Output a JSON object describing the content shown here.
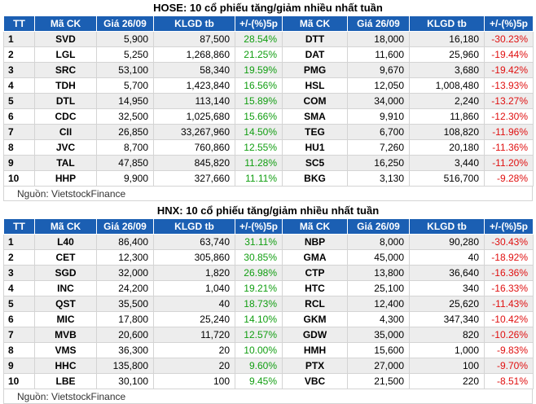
{
  "hose": {
    "title": "HOSE: 10 cổ phiếu tăng/giảm nhiều nhất tuần",
    "headers": [
      "TT",
      "Mã CK",
      "Giá 26/09",
      "KLGD tb",
      "+/-(%)5p",
      "Mã CK",
      "Giá 26/09",
      "KLGD tb",
      "+/-(%)5p"
    ],
    "rows": [
      {
        "tt": "1",
        "up_code": "SVD",
        "up_price": "5,900",
        "up_vol": "87,500",
        "up_pct": "28.54%",
        "dn_code": "DTT",
        "dn_price": "18,000",
        "dn_vol": "16,180",
        "dn_pct": "-30.23%"
      },
      {
        "tt": "2",
        "up_code": "LGL",
        "up_price": "5,250",
        "up_vol": "1,268,860",
        "up_pct": "21.25%",
        "dn_code": "DAT",
        "dn_price": "11,600",
        "dn_vol": "25,960",
        "dn_pct": "-19.44%"
      },
      {
        "tt": "3",
        "up_code": "SRC",
        "up_price": "53,100",
        "up_vol": "58,340",
        "up_pct": "19.59%",
        "dn_code": "PMG",
        "dn_price": "9,670",
        "dn_vol": "3,680",
        "dn_pct": "-19.42%"
      },
      {
        "tt": "4",
        "up_code": "TDH",
        "up_price": "5,700",
        "up_vol": "1,423,840",
        "up_pct": "16.56%",
        "dn_code": "HSL",
        "dn_price": "12,050",
        "dn_vol": "1,008,480",
        "dn_pct": "-13.93%"
      },
      {
        "tt": "5",
        "up_code": "DTL",
        "up_price": "14,950",
        "up_vol": "113,140",
        "up_pct": "15.89%",
        "dn_code": "COM",
        "dn_price": "34,000",
        "dn_vol": "2,240",
        "dn_pct": "-13.27%"
      },
      {
        "tt": "6",
        "up_code": "CDC",
        "up_price": "32,500",
        "up_vol": "1,025,680",
        "up_pct": "15.66%",
        "dn_code": "SMA",
        "dn_price": "9,910",
        "dn_vol": "11,860",
        "dn_pct": "-12.30%"
      },
      {
        "tt": "7",
        "up_code": "CII",
        "up_price": "26,850",
        "up_vol": "33,267,960",
        "up_pct": "14.50%",
        "dn_code": "TEG",
        "dn_price": "6,700",
        "dn_vol": "108,820",
        "dn_pct": "-11.96%"
      },
      {
        "tt": "8",
        "up_code": "JVC",
        "up_price": "8,700",
        "up_vol": "760,860",
        "up_pct": "12.55%",
        "dn_code": "HU1",
        "dn_price": "7,260",
        "dn_vol": "20,180",
        "dn_pct": "-11.36%"
      },
      {
        "tt": "9",
        "up_code": "TAL",
        "up_price": "47,850",
        "up_vol": "845,820",
        "up_pct": "11.28%",
        "dn_code": "SC5",
        "dn_price": "16,250",
        "dn_vol": "3,440",
        "dn_pct": "-11.20%"
      },
      {
        "tt": "10",
        "up_code": "HHP",
        "up_price": "9,900",
        "up_vol": "327,660",
        "up_pct": "11.11%",
        "dn_code": "BKG",
        "dn_price": "3,130",
        "dn_vol": "516,700",
        "dn_pct": "-9.28%"
      }
    ],
    "source": "Nguồn: VietstockFinance"
  },
  "hnx": {
    "title": "HNX: 10 cổ phiếu tăng/giảm nhiều nhất tuần",
    "headers": [
      "TT",
      "Mã CK",
      "Giá 26/09",
      "KLGD tb",
      "+/-(%)5p",
      "Mã CK",
      "Giá 26/09",
      "KLGD tb",
      "+/-(%)5p"
    ],
    "rows": [
      {
        "tt": "1",
        "up_code": "L40",
        "up_price": "86,400",
        "up_vol": "63,740",
        "up_pct": "31.11%",
        "dn_code": "NBP",
        "dn_price": "8,000",
        "dn_vol": "90,280",
        "dn_pct": "-30.43%"
      },
      {
        "tt": "2",
        "up_code": "CET",
        "up_price": "12,300",
        "up_vol": "305,860",
        "up_pct": "30.85%",
        "dn_code": "GMA",
        "dn_price": "45,000",
        "dn_vol": "40",
        "dn_pct": "-18.92%"
      },
      {
        "tt": "3",
        "up_code": "SGD",
        "up_price": "32,000",
        "up_vol": "1,820",
        "up_pct": "26.98%",
        "dn_code": "CTP",
        "dn_price": "13,800",
        "dn_vol": "36,640",
        "dn_pct": "-16.36%"
      },
      {
        "tt": "4",
        "up_code": "INC",
        "up_price": "24,200",
        "up_vol": "1,040",
        "up_pct": "19.21%",
        "dn_code": "HTC",
        "dn_price": "25,100",
        "dn_vol": "340",
        "dn_pct": "-16.33%"
      },
      {
        "tt": "5",
        "up_code": "QST",
        "up_price": "35,500",
        "up_vol": "40",
        "up_pct": "18.73%",
        "dn_code": "RCL",
        "dn_price": "12,400",
        "dn_vol": "25,620",
        "dn_pct": "-11.43%"
      },
      {
        "tt": "6",
        "up_code": "MIC",
        "up_price": "17,800",
        "up_vol": "25,240",
        "up_pct": "14.10%",
        "dn_code": "GKM",
        "dn_price": "4,300",
        "dn_vol": "347,340",
        "dn_pct": "-10.42%"
      },
      {
        "tt": "7",
        "up_code": "MVB",
        "up_price": "20,600",
        "up_vol": "11,720",
        "up_pct": "12.57%",
        "dn_code": "GDW",
        "dn_price": "35,000",
        "dn_vol": "820",
        "dn_pct": "-10.26%"
      },
      {
        "tt": "8",
        "up_code": "VMS",
        "up_price": "36,300",
        "up_vol": "20",
        "up_pct": "10.00%",
        "dn_code": "HMH",
        "dn_price": "15,600",
        "dn_vol": "1,000",
        "dn_pct": "-9.83%"
      },
      {
        "tt": "9",
        "up_code": "HHC",
        "up_price": "135,800",
        "up_vol": "20",
        "up_pct": "9.60%",
        "dn_code": "PTX",
        "dn_price": "27,000",
        "dn_vol": "100",
        "dn_pct": "-9.70%"
      },
      {
        "tt": "10",
        "up_code": "LBE",
        "up_price": "30,100",
        "up_vol": "100",
        "up_pct": "9.45%",
        "dn_code": "VBC",
        "dn_price": "21,500",
        "dn_vol": "220",
        "dn_pct": "-8.51%"
      }
    ],
    "source": "Nguồn: VietstockFinance"
  }
}
